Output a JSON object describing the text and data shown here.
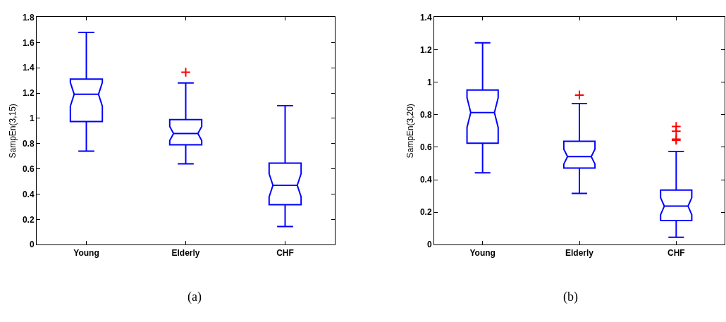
{
  "chart_data": [
    {
      "type": "box",
      "categories": [
        "Young",
        "Elderly",
        "CHF"
      ],
      "ylabel": "SampEn(3,15)",
      "ylim": [
        0,
        1.8
      ],
      "yticks": [
        0,
        0.2,
        0.4,
        0.6,
        0.8,
        1,
        1.2,
        1.4,
        1.6,
        1.8
      ],
      "marker": "cross",
      "annotations": [
        "(a)"
      ],
      "series": [
        {
          "color": "#0000ff",
          "boxes": [
            {
              "low": 0.74,
              "q1": 0.975,
              "median": 1.19,
              "q3": 1.31,
              "high": 1.68
            },
            {
              "low": 0.64,
              "q1": 0.79,
              "median": 0.88,
              "q3": 0.99,
              "high": 1.28,
              "outliers": [
                1.365
              ]
            },
            {
              "low": 0.143,
              "q1": 0.316,
              "median": 0.47,
              "q3": 0.645,
              "high": 1.1
            }
          ]
        }
      ]
    },
    {
      "type": "box",
      "categories": [
        "Young",
        "Elderly",
        "CHF"
      ],
      "ylabel": "SampEn(3,20)",
      "ylim": [
        0,
        1.4
      ],
      "yticks": [
        0,
        0.2,
        0.4,
        0.6,
        0.8,
        1,
        1.2,
        1.4
      ],
      "marker": "cross",
      "annotations": [
        "(b)"
      ],
      "series": [
        {
          "color": "#0000ff",
          "boxes": [
            {
              "low": 0.442,
              "q1": 0.625,
              "median": 0.813,
              "q3": 0.952,
              "high": 1.243
            },
            {
              "low": 0.316,
              "q1": 0.472,
              "median": 0.542,
              "q3": 0.636,
              "high": 0.869,
              "outliers": [
                0.921
              ]
            },
            {
              "low": 0.045,
              "q1": 0.149,
              "median": 0.237,
              "q3": 0.336,
              "high": 0.574,
              "outliers": [
                0.727,
                0.698,
                0.65,
                0.643
              ]
            }
          ]
        }
      ]
    }
  ]
}
